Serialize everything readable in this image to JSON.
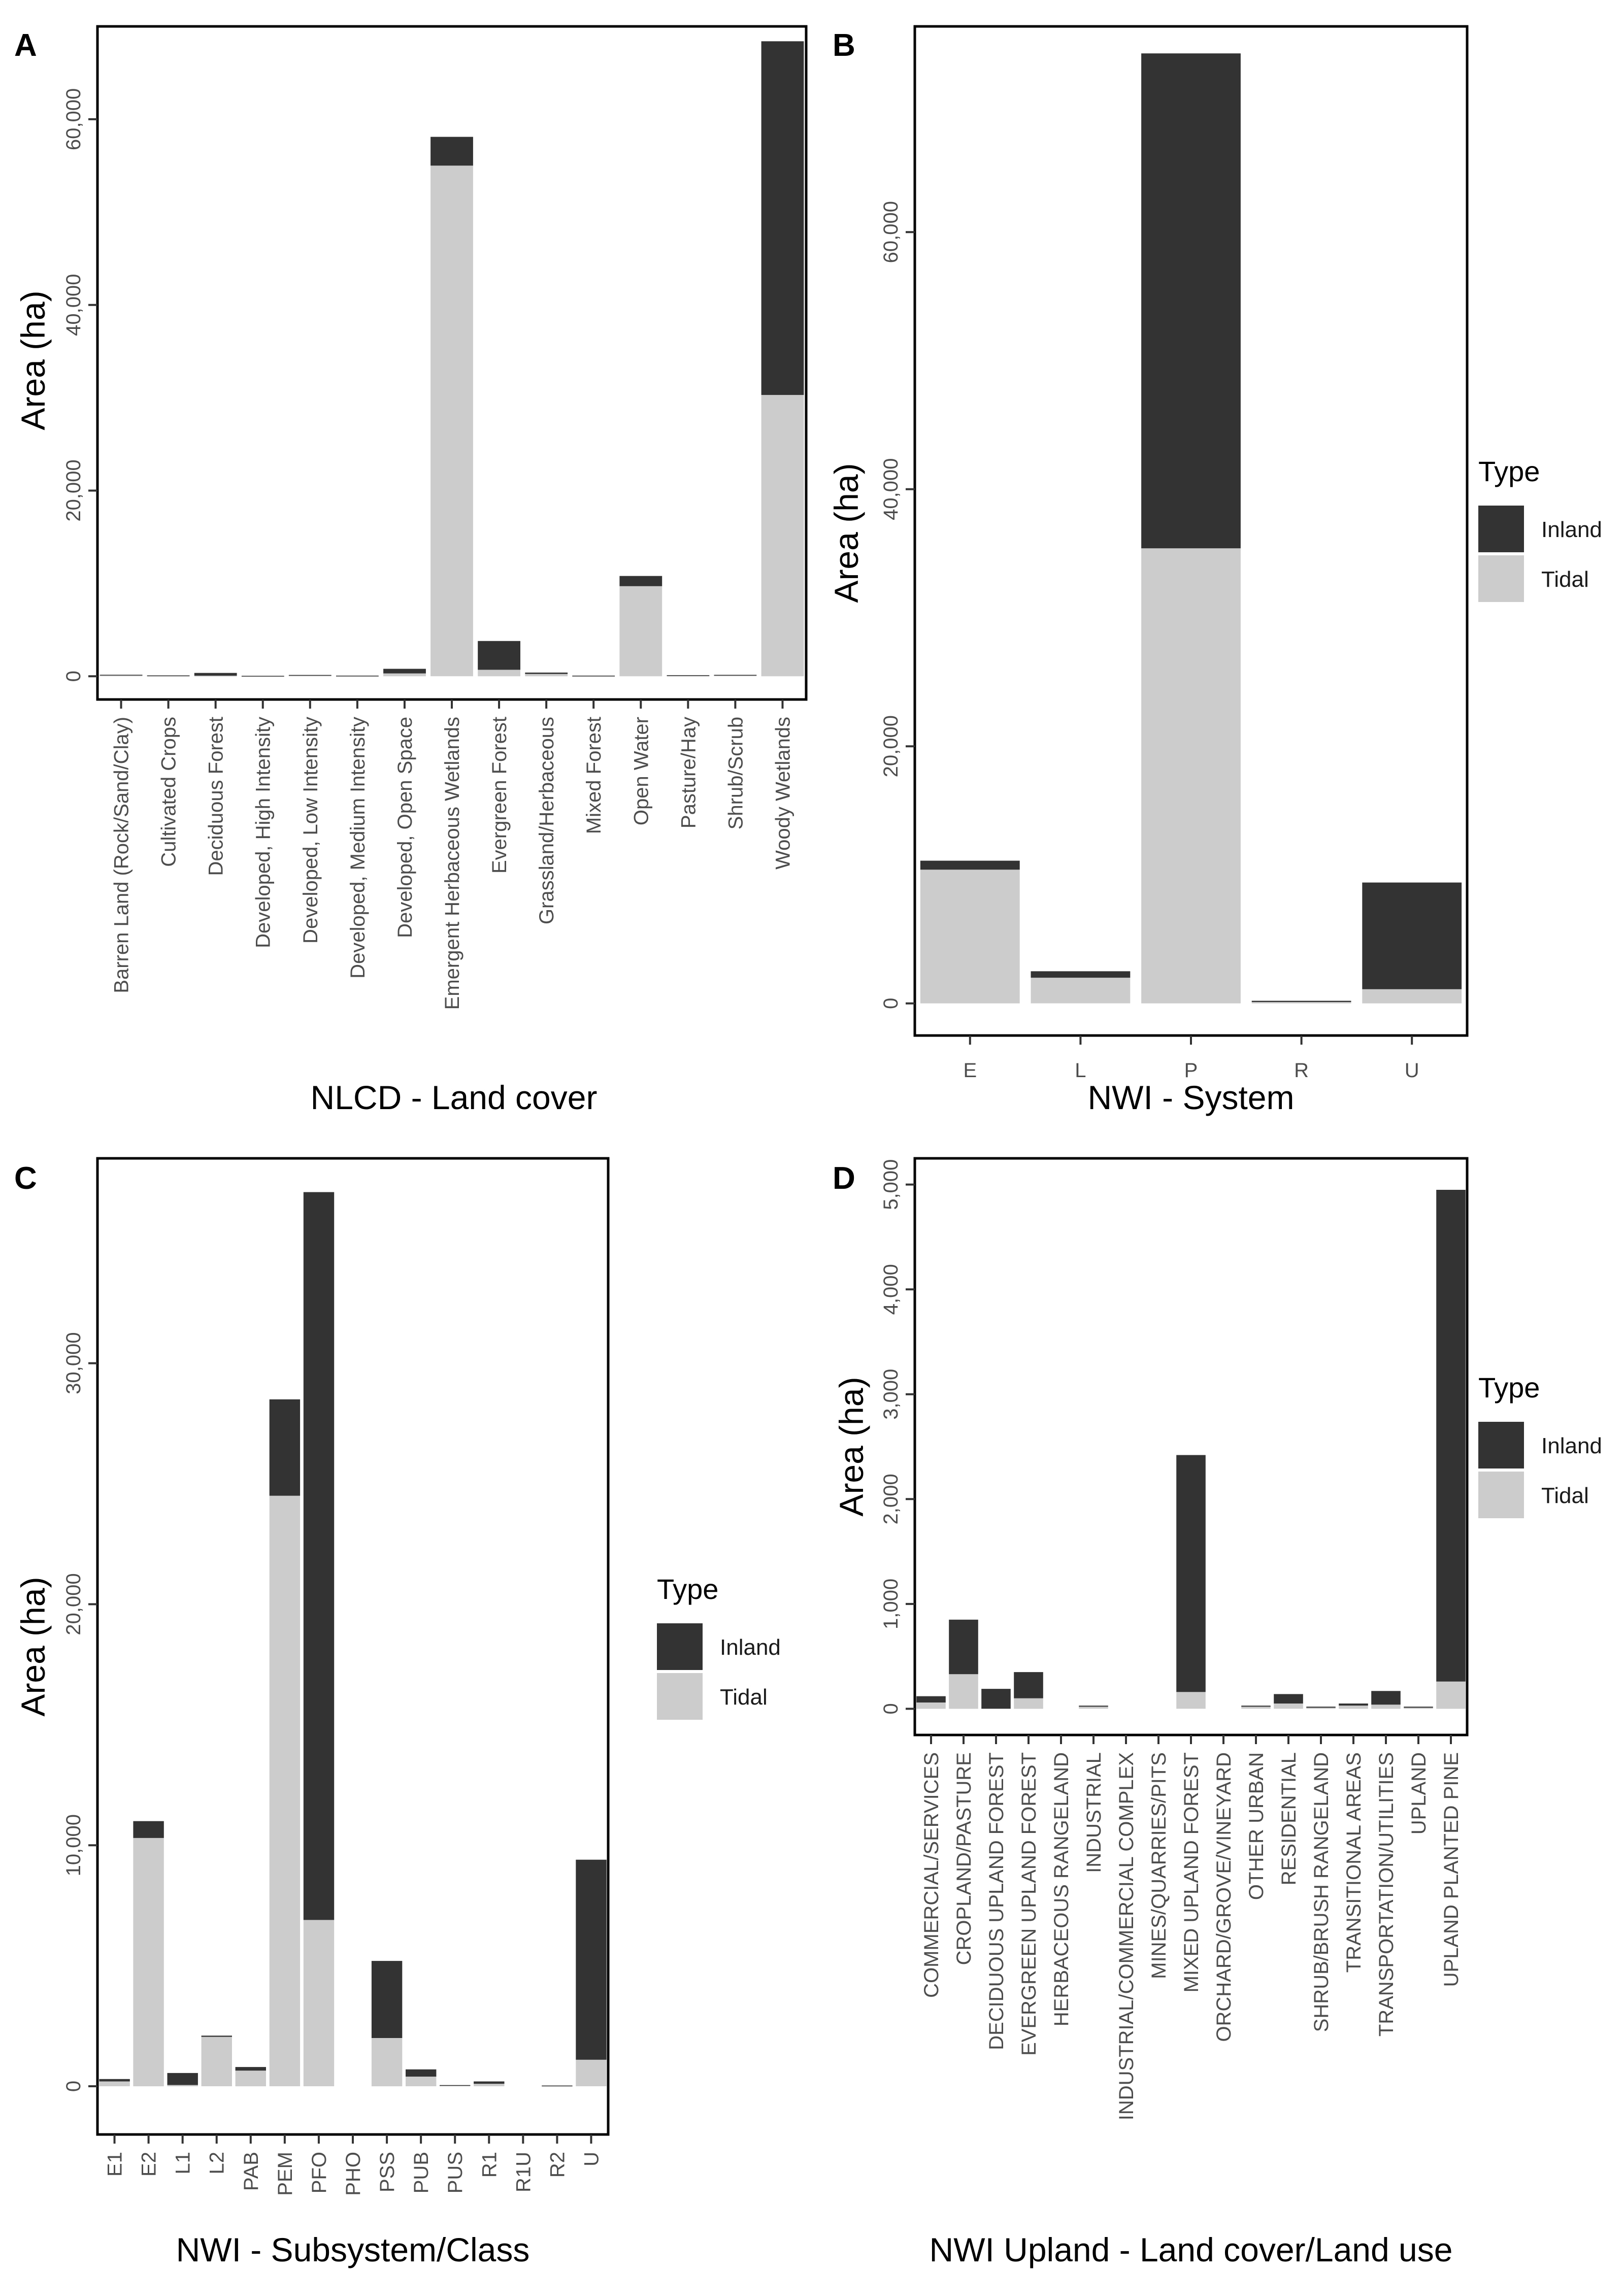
{
  "colors": {
    "Inland": "#333333",
    "Tidal": "#cccccc"
  },
  "legend": {
    "title": "Type",
    "items": [
      "Inland",
      "Tidal"
    ]
  },
  "chart_data": [
    {
      "panel": "A",
      "type": "bar",
      "stacked": true,
      "xlabel": "NLCD - Land cover",
      "ylabel": "Area (ha)",
      "ylim": [
        -2500,
        70000
      ],
      "yticks": [
        0,
        20000,
        40000,
        60000
      ],
      "ytick_labels": [
        "0",
        "20,000",
        "40,000",
        "60,000"
      ],
      "categories": [
        "Barren Land (Rock/Sand/Clay)",
        "Cultivated Crops",
        "Deciduous Forest",
        "Developed, High Intensity",
        "Developed, Low Intensity",
        "Developed, Medium Intensity",
        "Developed, Open Space",
        "Emergent Herbaceous Wetlands",
        "Evergreen Forest",
        "Grassland/Herbaceous",
        "Mixed Forest",
        "Open Water",
        "Pasture/Hay",
        "Shrub/Scrub",
        "Woody Wetlands"
      ],
      "series": [
        {
          "name": "Tidal",
          "values": [
            120,
            60,
            60,
            30,
            80,
            50,
            300,
            55000,
            700,
            250,
            40,
            9700,
            60,
            80,
            30300
          ]
        },
        {
          "name": "Inland",
          "values": [
            40,
            30,
            300,
            20,
            60,
            20,
            500,
            3100,
            3100,
            150,
            30,
            1100,
            60,
            70,
            38100
          ]
        }
      ]
    },
    {
      "panel": "B",
      "type": "bar",
      "stacked": true,
      "xlabel": "NWI - System",
      "ylabel": "Area (ha)",
      "ylim": [
        -2500,
        76000
      ],
      "yticks": [
        0,
        20000,
        40000,
        60000
      ],
      "ytick_labels": [
        "0",
        "20,000",
        "40,000",
        "60,000"
      ],
      "categories": [
        "E",
        "L",
        "P",
        "R",
        "U"
      ],
      "series": [
        {
          "name": "Tidal",
          "values": [
            10400,
            2000,
            35400,
            100,
            1100
          ]
        },
        {
          "name": "Inland",
          "values": [
            700,
            500,
            38500,
            100,
            8300
          ]
        }
      ]
    },
    {
      "panel": "C",
      "type": "bar",
      "stacked": true,
      "xlabel": "NWI - Subsystem/Class",
      "ylabel": "Area (ha)",
      "ylim": [
        -2000,
        38500
      ],
      "yticks": [
        0,
        10000,
        20000,
        30000
      ],
      "ytick_labels": [
        "0",
        "10,000",
        "20,000",
        "30,000"
      ],
      "categories": [
        "E1",
        "E2",
        "L1",
        "L2",
        "PAB",
        "PEM",
        "PFO",
        "PHO",
        "PSS",
        "PUB",
        "PUS",
        "R1",
        "R1U",
        "R2",
        "U"
      ],
      "series": [
        {
          "name": "Tidal",
          "values": [
            200,
            10300,
            50,
            2050,
            650,
            24500,
            6900,
            0,
            2000,
            400,
            30,
            100,
            0,
            20,
            1100
          ]
        },
        {
          "name": "Inland",
          "values": [
            100,
            700,
            500,
            50,
            150,
            4000,
            30200,
            0,
            3200,
            300,
            20,
            100,
            0,
            10,
            8300
          ]
        }
      ]
    },
    {
      "panel": "D",
      "type": "bar",
      "stacked": true,
      "xlabel": "NWI Upland - Land cover/Land use",
      "ylabel": "Area (ha)",
      "ylim": [
        -250,
        5250
      ],
      "yticks": [
        0,
        1000,
        2000,
        3000,
        4000,
        5000
      ],
      "ytick_labels": [
        "0",
        "1,000",
        "2,000",
        "3,000",
        "4,000",
        "5,000"
      ],
      "categories": [
        "COMMERCIAL/SERVICES",
        "CROPLAND/PASTURE",
        "DECIDUOUS UPLAND FOREST",
        "EVERGREEN UPLAND FOREST",
        "HERBACEOUS RANGELAND",
        "INDUSTRIAL",
        "INDUSTRIAL/COMMERCIAL COMPLEX",
        "MINES/QUARRIES/PITS",
        "MIXED UPLAND FOREST",
        "ORCHARD/GROVE/VINEYARD",
        "OTHER URBAN",
        "RESIDENTIAL",
        "SHRUB/BRUSH RANGELAND",
        "TRANSITIONAL AREAS",
        "TRANSPORTATION/UTILITIES",
        "UPLAND",
        "UPLAND PLANTED PINE"
      ],
      "series": [
        {
          "name": "Tidal",
          "values": [
            60,
            330,
            0,
            100,
            0,
            20,
            0,
            0,
            160,
            0,
            20,
            50,
            10,
            30,
            40,
            10,
            260
          ]
        },
        {
          "name": "Inland",
          "values": [
            60,
            520,
            190,
            250,
            0,
            10,
            0,
            0,
            2260,
            0,
            10,
            90,
            10,
            20,
            130,
            10,
            4690
          ]
        }
      ]
    }
  ]
}
